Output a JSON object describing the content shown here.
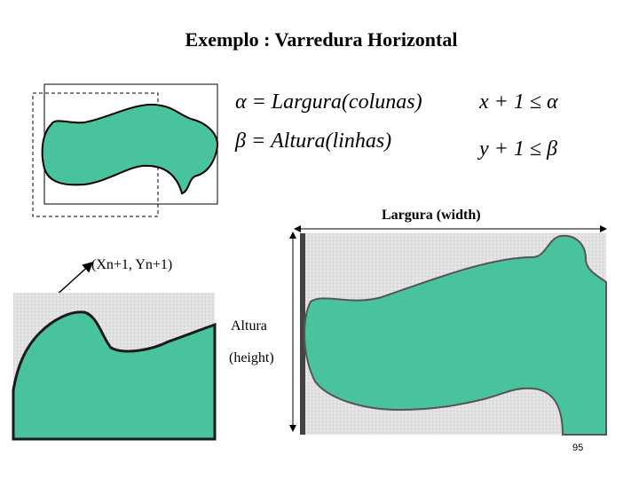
{
  "header": {
    "title": "Exemplo : Varredura Horizontal"
  },
  "formulas": [
    "α = Largura(colunas)",
    "β = Altura(linhas)",
    "x + 1 ≤ α",
    "y + 1 ≤ β"
  ],
  "labels": {
    "width": "Largura (width)",
    "point": "(Xn+1, Yn+1)",
    "height_1": "Altura",
    "height_2": "(height)"
  },
  "page_number": "95"
}
